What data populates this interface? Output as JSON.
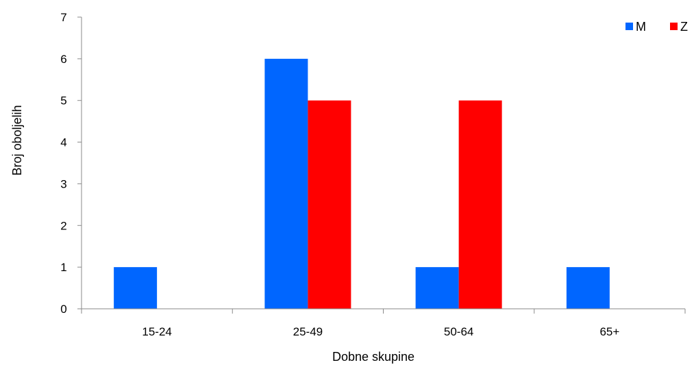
{
  "chart_data": {
    "type": "bar",
    "categories": [
      "15-24",
      "25-49",
      "50-64",
      "65+"
    ],
    "series": [
      {
        "name": "M",
        "values": [
          1,
          6,
          1,
          1
        ],
        "color": "#0066FF"
      },
      {
        "name": "Z",
        "values": [
          0,
          5,
          5,
          0
        ],
        "color": "#FF0000"
      }
    ],
    "xlabel": "Dobne skupine",
    "ylabel": "Broj oboljelih",
    "ylim": [
      0,
      7
    ],
    "yticks": [
      0,
      1,
      2,
      3,
      4,
      5,
      6,
      7
    ],
    "grid": false,
    "legend_position": "top-right"
  }
}
